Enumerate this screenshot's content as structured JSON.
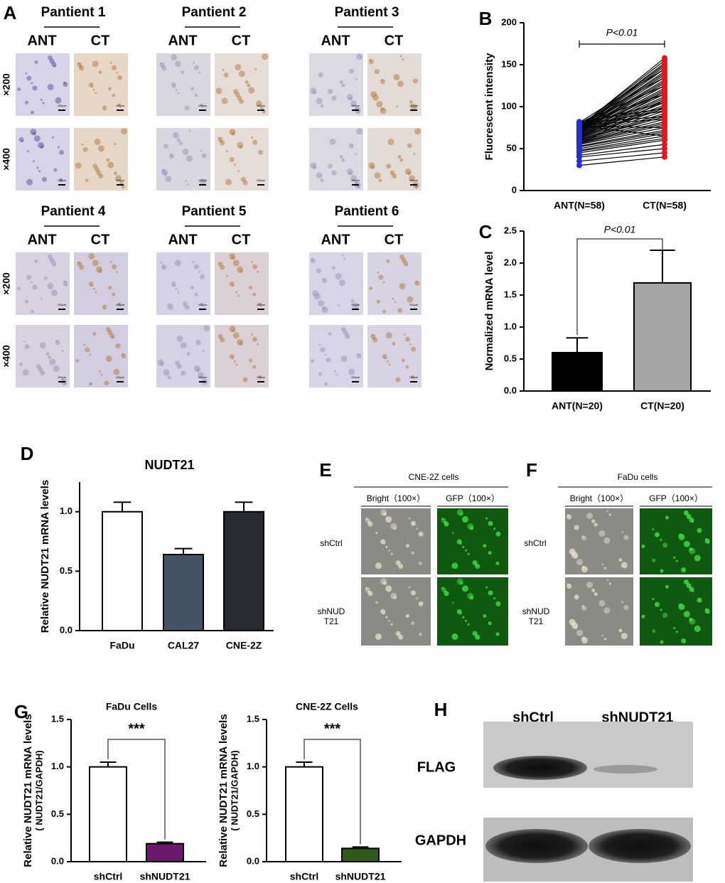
{
  "panel_labels": [
    "A",
    "B",
    "C",
    "D",
    "E",
    "F",
    "G",
    "H"
  ],
  "panel_a": {
    "patients": [
      "Pantient 1",
      "Pantient 2",
      "Pantient 3",
      "Pantient 4",
      "Pantient 5",
      "Pantient 6"
    ],
    "columns": [
      "ANT",
      "CT"
    ],
    "magnifications": [
      "×200",
      "×400"
    ],
    "scale_bar": "100μm"
  },
  "panel_e": {
    "title": "CNE-2Z cells",
    "columns": [
      "Bright（100×）",
      "GFP（100×）"
    ],
    "rows": [
      "shCtrl",
      "shNUDT21"
    ]
  },
  "panel_f": {
    "title": "FaDu cells",
    "columns": [
      "Bright（100×）",
      "GFP（100×）"
    ],
    "rows": [
      "shCtrl",
      "shNUDT21"
    ]
  },
  "panel_h": {
    "columns": [
      "shCtrl",
      "shNUDT21"
    ],
    "rows": [
      "FLAG",
      "GAPDH"
    ]
  },
  "chart_data": [
    {
      "type": "paired",
      "ylabel": "Fluorescent intensity",
      "annotation": "P<0.01",
      "categories": [
        "ANT(N=58)",
        "CT(N=58)"
      ],
      "colors": [
        "#1f2fd6",
        "#e8141b"
      ],
      "values": [
        [
          30,
          35,
          40,
          42,
          45,
          47,
          48,
          50,
          52,
          53,
          55,
          56,
          57,
          58,
          59,
          60,
          60,
          61,
          62,
          63,
          63,
          64,
          65,
          65,
          66,
          67,
          67,
          68,
          68,
          69,
          70,
          70,
          71,
          71,
          72,
          72,
          73,
          73,
          74,
          74,
          75,
          75,
          76,
          76,
          77,
          77,
          78,
          78,
          79,
          79,
          80,
          80,
          81,
          81,
          82,
          55,
          62,
          70
        ],
        [
          40,
          45,
          50,
          55,
          60,
          62,
          65,
          68,
          70,
          72,
          75,
          78,
          80,
          82,
          85,
          88,
          90,
          92,
          95,
          98,
          100,
          102,
          105,
          108,
          110,
          112,
          115,
          118,
          120,
          122,
          125,
          128,
          130,
          132,
          135,
          138,
          140,
          142,
          145,
          148,
          150,
          152,
          155,
          158,
          65,
          75,
          85,
          95,
          105,
          115,
          125,
          135,
          145,
          88,
          98,
          108,
          118,
          128
        ]
      ],
      "ylim": [
        0,
        200
      ],
      "yticks": [
        0,
        50,
        100,
        150,
        200
      ]
    },
    {
      "type": "bar",
      "ylabel": "Normalized mRNA level",
      "annotation": "P<0.01",
      "categories": [
        "ANT(N=20)",
        "CT(N=20)"
      ],
      "values": [
        0.6,
        1.69
      ],
      "errors": [
        0.23,
        0.51
      ],
      "colors": [
        "#000000",
        "#a6a6a6"
      ],
      "ylim": [
        0,
        2.5
      ],
      "yticks": [
        {
          "value": 0,
          "label": "0.0"
        },
        0.5,
        {
          "value": 1,
          "label": "1.0"
        },
        1.5,
        {
          "value": 2,
          "label": "2.0"
        },
        2.5
      ]
    },
    {
      "type": "bar",
      "title": "NUDT21",
      "ylabel": "Relative NUDT21 mRNA levels",
      "categories": [
        "FaDu",
        "CAL27",
        "CNE-2Z"
      ],
      "values": [
        1.0,
        0.64,
        1.0
      ],
      "errors": [
        0.08,
        0.05,
        0.08
      ],
      "colors": [
        "#ffffff",
        "#435363",
        "#262a33"
      ],
      "ylim": [
        0,
        1.25
      ],
      "yticks": [
        {
          "value": 0,
          "label": "0.0"
        },
        0.5,
        {
          "value": 1,
          "label": "1.0"
        }
      ]
    },
    {
      "type": "bar",
      "title": "FaDu Cells",
      "ylabel": "Relative NUDT21 mRNA levels",
      "ylabel_sub": "( NUDT21/GAPDH)",
      "annotation": "***",
      "categories": [
        "shCtrl",
        "shNUDT21"
      ],
      "values": [
        1.0,
        0.19
      ],
      "errors": [
        0.05,
        0.015
      ],
      "colors": [
        "#ffffff",
        "#6b1a6b"
      ],
      "ylim": [
        0,
        1.5
      ],
      "yticks": [
        {
          "value": 0,
          "label": "0.0"
        },
        0.5,
        {
          "value": 1,
          "label": "1.0"
        },
        1.5
      ]
    },
    {
      "type": "bar",
      "title": "CNE-2Z Cells",
      "ylabel": "Relative NUDT21 mRNA levels",
      "ylabel_sub": "( NUDT21/GAPDH)",
      "annotation": "***",
      "categories": [
        "shCtrl",
        "shNUDT21"
      ],
      "values": [
        1.0,
        0.14
      ],
      "errors": [
        0.05,
        0.015
      ],
      "colors": [
        "#ffffff",
        "#2f5a1a"
      ],
      "ylim": [
        0,
        1.5
      ],
      "yticks": [
        {
          "value": 0,
          "label": "0.0"
        },
        0.5,
        {
          "value": 1,
          "label": "1.0"
        },
        1.5
      ]
    }
  ]
}
